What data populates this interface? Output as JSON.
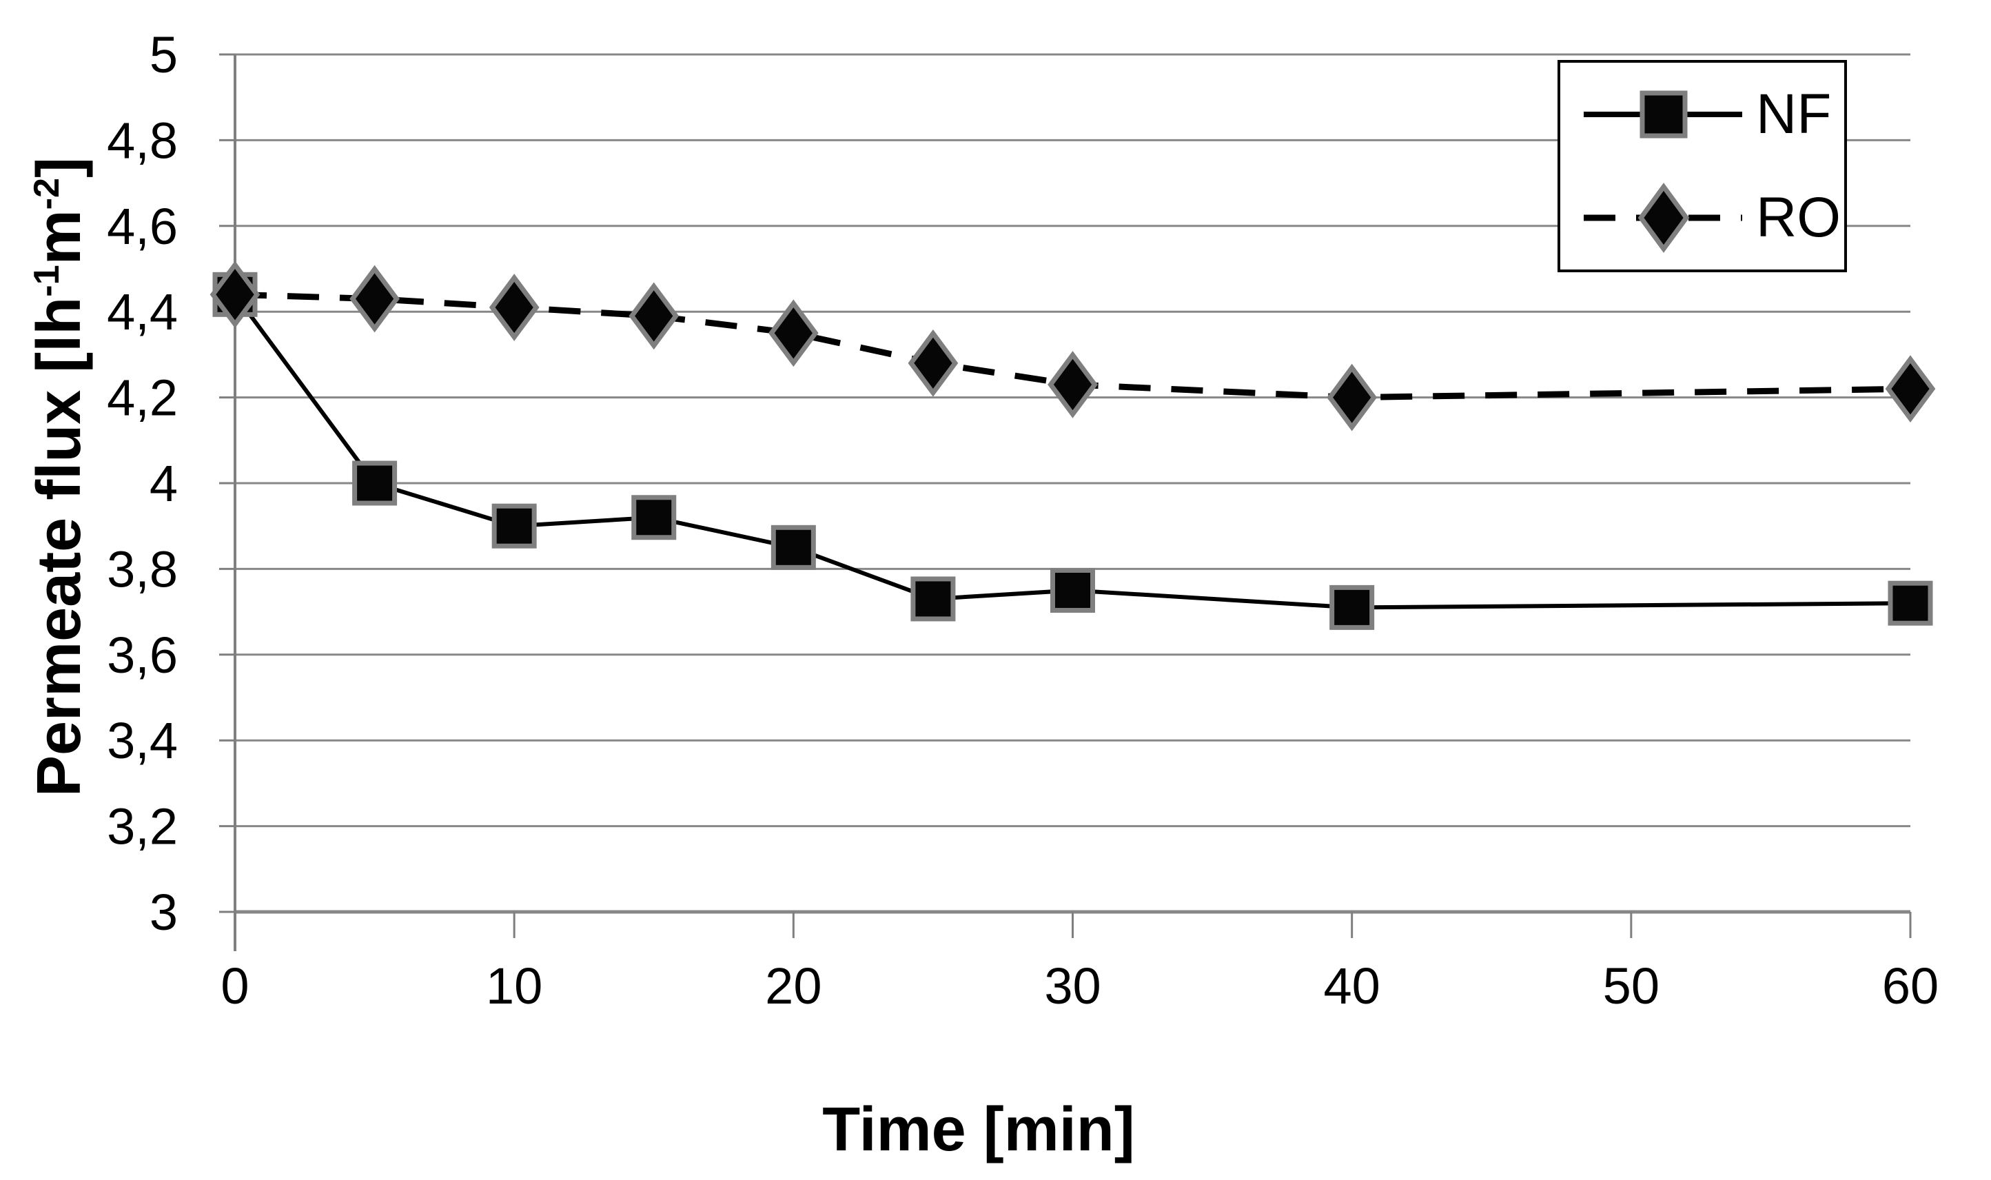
{
  "chart_data": {
    "type": "line",
    "title": "",
    "xlabel": "Time [min]",
    "ylabel": "Permeate flux [lh-1m-2]",
    "ylabel_parts": {
      "base1": "Permeate flux [lh",
      "sup1": "-1",
      "base2": "m",
      "sup2": "-2",
      "base3": "]"
    },
    "x": [
      0,
      5,
      10,
      15,
      20,
      25,
      30,
      40,
      60
    ],
    "series": [
      {
        "name": "NF",
        "values": [
          4.44,
          4.0,
          3.9,
          3.92,
          3.85,
          3.73,
          3.75,
          3.71,
          3.72
        ],
        "line_style": "solid",
        "marker": "square"
      },
      {
        "name": "RO",
        "values": [
          4.44,
          4.43,
          4.41,
          4.39,
          4.35,
          4.28,
          4.23,
          4.2,
          4.22
        ],
        "line_style": "dashed",
        "marker": "diamond"
      }
    ],
    "xlim": [
      0,
      60
    ],
    "ylim": [
      3,
      5
    ],
    "x_ticks": [
      0,
      10,
      20,
      30,
      40,
      50,
      60
    ],
    "x_tick_labels": [
      "0",
      "10",
      "20",
      "30",
      "40",
      "50",
      "60"
    ],
    "y_ticks": [
      3,
      3.2,
      3.4,
      3.6,
      3.8,
      4,
      4.2,
      4.4,
      4.6,
      4.8,
      5
    ],
    "y_tick_labels": [
      "3",
      "3,2",
      "3,4",
      "3,6",
      "3,8",
      "4",
      "4,2",
      "4,4",
      "4,6",
      "4,8",
      "5"
    ],
    "grid": true,
    "legend_position": "top-right",
    "colors": {
      "series": "#000000",
      "gridline": "#878787",
      "axis": "#7f7f7f",
      "marker_fill": "#060606",
      "marker_border": "#7f7f7f",
      "background": "#ffffff",
      "legend_border": "#000000",
      "text": "#000000"
    }
  }
}
